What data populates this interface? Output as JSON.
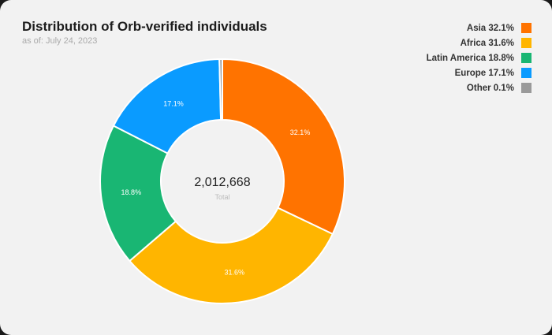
{
  "title": "Distribution of Orb-verified individuals",
  "subtitle": "as of: July 24, 2023",
  "chart_data": {
    "type": "pie",
    "donut": true,
    "title": "Distribution of Orb-verified individuals",
    "center_value": "2,012,668",
    "center_label": "Total",
    "legend_position": "top-right",
    "categories": [
      "Asia",
      "Africa",
      "Latin America",
      "Europe",
      "Other"
    ],
    "values": [
      32.1,
      31.6,
      18.8,
      17.1,
      0.1
    ],
    "data_labels": [
      "32.1%",
      "31.6%",
      "18.8%",
      "17.1%",
      ""
    ],
    "legend_labels": [
      "Asia 32.1%",
      "Africa 31.6%",
      "Latin America 18.8%",
      "Europe 17.1%",
      "Other 0.1%"
    ],
    "colors": [
      "#ff7300",
      "#ffb500",
      "#19b673",
      "#0a9bff",
      "#9a9a9a"
    ]
  }
}
